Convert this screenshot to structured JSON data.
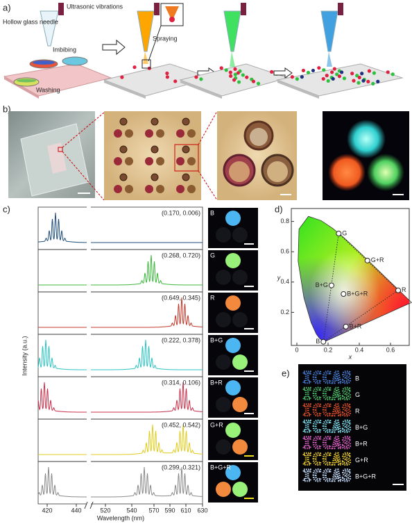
{
  "panel_labels": {
    "a": "a)",
    "b": "b)",
    "c": "c)",
    "d": "d)",
    "e": "e)"
  },
  "panel_a": {
    "ultrasonic": "Ultrasonic vibrations",
    "needle": "Hollow glass needle",
    "imbibing": "Imbibing",
    "washing": "Washing",
    "spraying": "Spraying"
  },
  "panel_c": {
    "y_label": "Intensity (a.u.)",
    "x_label": "Wavelength (nm)",
    "x_ticks": [
      "420",
      "440",
      "520",
      "540",
      "570",
      "590",
      "610",
      "630"
    ],
    "rows": [
      {
        "label": "B",
        "coords": "(0.170, 0.006)",
        "color": "#1f4e79"
      },
      {
        "label": "G",
        "coords": "(0.268, 0.720)",
        "color": "#3cb83c"
      },
      {
        "label": "R",
        "coords": "(0.649, 0.345)",
        "color": "#c0392b"
      },
      {
        "label": "B+G",
        "coords": "(0.222, 0.378)",
        "color": "#2ec4c4"
      },
      {
        "label": "B+R",
        "coords": "(0.314, 0.106)",
        "color": "#c8304a"
      },
      {
        "label": "G+R",
        "coords": "(0.452, 0.542)",
        "color": "#e0cc1e"
      },
      {
        "label": "B+G+R",
        "coords": "(0.299, 0.321)",
        "color": "#8a8a8a"
      }
    ]
  },
  "panel_d": {
    "x_label": "x",
    "y_label": "y",
    "x_ticks": [
      "0",
      "0.2",
      "0.4",
      "0.6"
    ],
    "y_ticks": [
      "0.2",
      "0.4",
      "0.6",
      "0.8"
    ]
  },
  "panel_e": {
    "rows": [
      {
        "text": "ICCAS",
        "label": "B",
        "color": "#4a7fd8"
      },
      {
        "text": "ICCAS",
        "label": "G",
        "color": "#4fc46a"
      },
      {
        "text": "ICCAS",
        "label": "R",
        "color": "#e0502a"
      },
      {
        "text": "ICCAS",
        "label": "B+G",
        "color": "#7fe0f0"
      },
      {
        "text": "ICCAS",
        "label": "B+R",
        "color": "#e060c8"
      },
      {
        "text": "ICCAS",
        "label": "G+R",
        "color": "#f0d030"
      },
      {
        "text": "ICCAS",
        "label": "B+G+R",
        "color": "#c8e0ff"
      }
    ]
  }
}
